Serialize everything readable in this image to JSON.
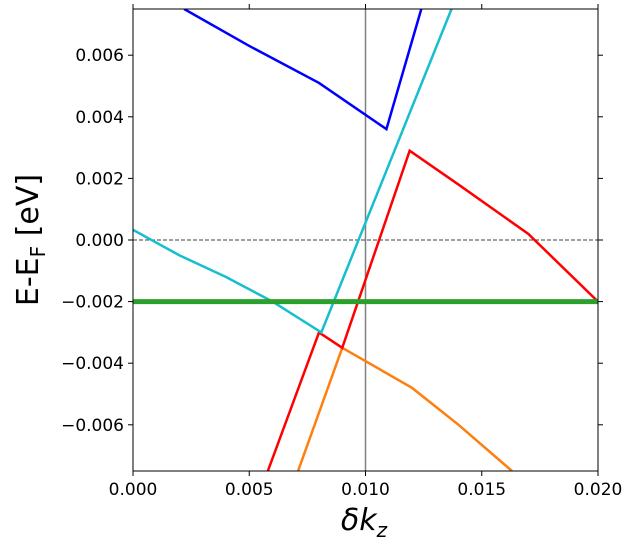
{
  "chart_data": {
    "type": "line",
    "xlabel": {
      "main": "δk",
      "sub": "z"
    },
    "ylabel": {
      "main": "E-E",
      "sub": "F",
      "unit": " [eV]"
    },
    "xlim": [
      0,
      0.02
    ],
    "ylim": [
      -0.0075,
      0.0075
    ],
    "xticks": [
      {
        "value": 0,
        "label": "0.000"
      },
      {
        "value": 0.005,
        "label": "0.005"
      },
      {
        "value": 0.01,
        "label": "0.010"
      },
      {
        "value": 0.015,
        "label": "0.015"
      },
      {
        "value": 0.02,
        "label": "0.020"
      }
    ],
    "yticks": [
      {
        "value": -0.006,
        "label": "−0.006"
      },
      {
        "value": -0.004,
        "label": "−0.004"
      },
      {
        "value": -0.002,
        "label": "−0.002"
      },
      {
        "value": 0,
        "label": "0.000"
      },
      {
        "value": 0.002,
        "label": "0.002"
      },
      {
        "value": 0.004,
        "label": "0.004"
      },
      {
        "value": 0.006,
        "label": "0.006"
      }
    ],
    "vline": {
      "value": 0.01,
      "color": "#808080"
    },
    "hline": {
      "value": 0,
      "color": "#000000"
    },
    "series": [
      {
        "color": "#0000ff",
        "width": 2.5,
        "x": [
          0.0022,
          0.005,
          0.008,
          0.0109,
          0.0124
        ],
        "values": [
          0.0075,
          0.0063,
          0.0051,
          0.0036,
          0.0075
        ]
      },
      {
        "color": "#ff7f0e",
        "width": 2.5,
        "x": [
          0.0071,
          0.009,
          0.012,
          0.014,
          0.0163
        ],
        "values": [
          -0.0075,
          -0.0035,
          -0.0048,
          -0.006,
          -0.0075
        ]
      },
      {
        "color": "#ff0000",
        "width": 2.5,
        "x": [
          0.0058,
          0.008,
          0.009,
          0.0119,
          0.014,
          0.017,
          0.02
        ],
        "values": [
          -0.0075,
          -0.003,
          -0.0035,
          0.0029,
          0.0018,
          0.0002,
          -0.002
        ]
      },
      {
        "color": "#17becf",
        "width": 2.5,
        "x": [
          0,
          0.002,
          0.004,
          0.006,
          0.0081,
          0.0137
        ],
        "values": [
          0.00033,
          -0.0005,
          -0.0012,
          -0.002,
          -0.003,
          0.0075
        ]
      },
      {
        "color": "#2ca02c",
        "width": 5,
        "x": [
          0,
          0.02
        ],
        "values": [
          -0.002,
          -0.002
        ]
      }
    ]
  }
}
